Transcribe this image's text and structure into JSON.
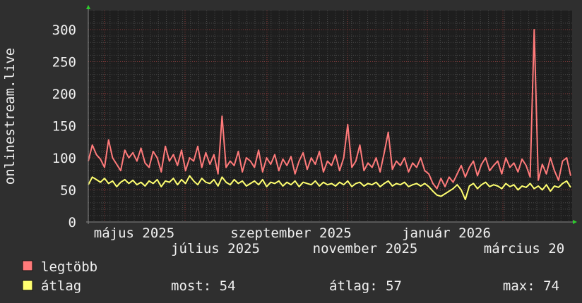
{
  "chart_data": {
    "type": "line",
    "ylabel": "onlinestream.live",
    "ylim": [
      0,
      310
    ],
    "yticks": [
      0,
      50,
      100,
      150,
      200,
      250,
      300
    ],
    "grid": true,
    "xtick_labels": [
      "május 2025",
      "július 2025",
      "szeptember 2025",
      "november 2025",
      "január 2026",
      "március 20"
    ],
    "series": [
      {
        "name": "legtöbb",
        "color": "#ff7a7a",
        "values": [
          95,
          120,
          105,
          98,
          85,
          128,
          100,
          90,
          80,
          112,
          100,
          108,
          95,
          115,
          92,
          85,
          110,
          100,
          78,
          118,
          95,
          105,
          88,
          112,
          80,
          100,
          95,
          118,
          85,
          108,
          90,
          105,
          75,
          165,
          85,
          95,
          88,
          110,
          78,
          100,
          95,
          85,
          112,
          78,
          100,
          90,
          105,
          80,
          98,
          88,
          102,
          75,
          95,
          108,
          82,
          100,
          90,
          110,
          78,
          95,
          88,
          105,
          80,
          100,
          152,
          85,
          95,
          120,
          80,
          92,
          85,
          100,
          78,
          108,
          140,
          82,
          95,
          88,
          100,
          78,
          92,
          85,
          100,
          80,
          75,
          60,
          52,
          68,
          55,
          70,
          62,
          75,
          88,
          70,
          85,
          95,
          72,
          90,
          100,
          80,
          88,
          95,
          75,
          100,
          85,
          92,
          78,
          98,
          88,
          70,
          300,
          65,
          90,
          75,
          100,
          80,
          65,
          95,
          100,
          72
        ]
      },
      {
        "name": "átlag",
        "color": "#ffff70",
        "values": [
          58,
          70,
          66,
          62,
          68,
          60,
          64,
          55,
          62,
          66,
          60,
          65,
          58,
          62,
          56,
          64,
          60,
          66,
          55,
          64,
          62,
          68,
          58,
          66,
          60,
          72,
          64,
          58,
          68,
          62,
          60,
          66,
          56,
          70,
          62,
          58,
          66,
          60,
          64,
          56,
          60,
          64,
          58,
          66,
          55,
          62,
          60,
          64,
          56,
          62,
          58,
          64,
          55,
          62,
          60,
          58,
          64,
          56,
          62,
          58,
          60,
          56,
          62,
          58,
          64,
          55,
          60,
          62,
          56,
          60,
          58,
          62,
          55,
          60,
          64,
          56,
          60,
          58,
          62,
          55,
          58,
          60,
          56,
          60,
          55,
          48,
          42,
          40,
          44,
          48,
          52,
          58,
          50,
          35,
          56,
          60,
          52,
          58,
          62,
          55,
          58,
          56,
          52,
          60,
          55,
          58,
          50,
          56,
          54,
          60,
          52,
          56,
          50,
          58,
          48,
          56,
          54,
          60,
          64,
          54
        ]
      }
    ],
    "legend": {
      "placement": "bottom",
      "items": [
        {
          "label": "legtöbb",
          "color": "#ff7a7a"
        },
        {
          "label": "átlag",
          "color": "#ffff70",
          "stats": {
            "most": "most: 54",
            "avg": "átlag: 57",
            "max": "max: 74"
          }
        }
      ]
    }
  }
}
